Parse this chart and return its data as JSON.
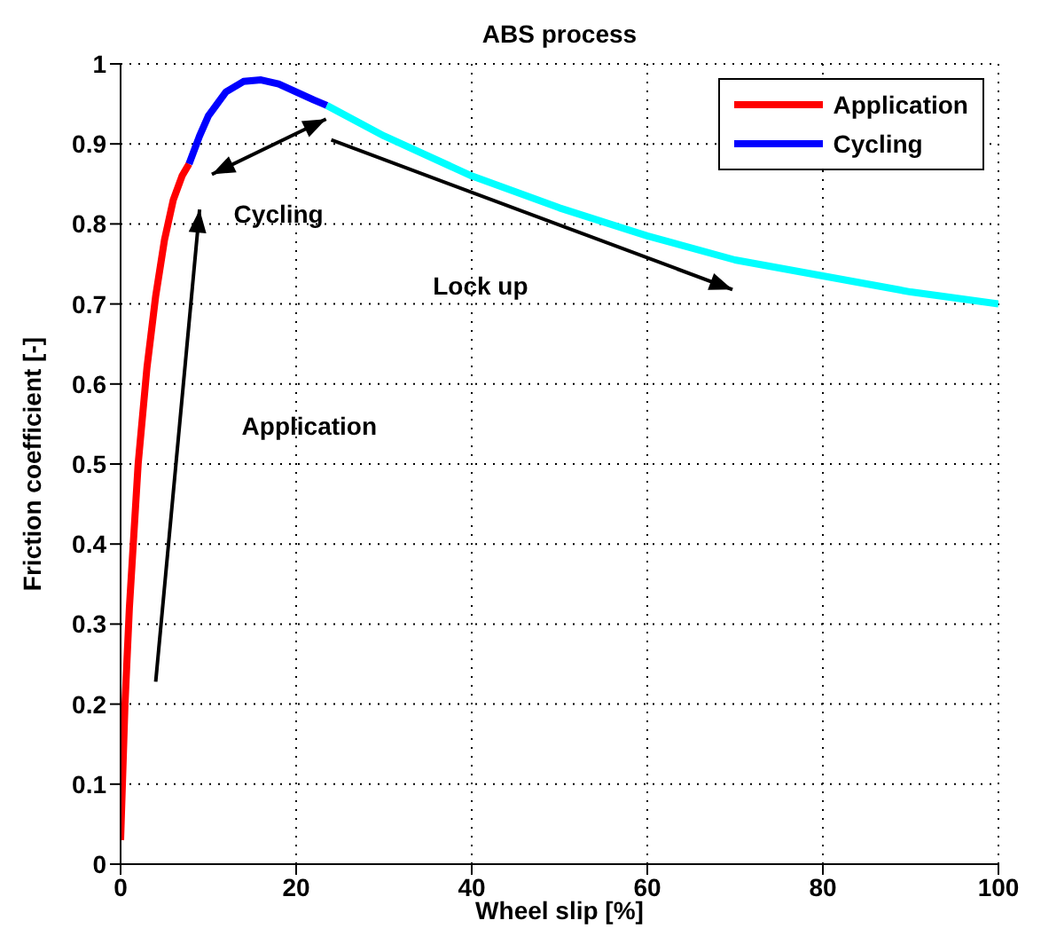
{
  "chart_data": {
    "type": "line",
    "title": "ABS process",
    "xlabel": "Wheel slip [%]",
    "ylabel": "Friction coefficient [-]",
    "xlim": [
      0,
      100
    ],
    "xticks": [
      0,
      20,
      40,
      60,
      80,
      100
    ],
    "ylim": [
      0,
      1
    ],
    "yticks": [
      0,
      0.1,
      0.2,
      0.3,
      0.4,
      0.5,
      0.6,
      0.7,
      0.8,
      0.9,
      1
    ],
    "grid": true,
    "legend": "top right",
    "line_style": "solid",
    "marker": "none",
    "series": [
      {
        "name": "Application",
        "color": "#ff0000",
        "x": [
          0,
          0.5,
          1,
          2,
          3,
          4,
          5,
          6,
          7,
          7.8
        ],
        "values": [
          0.03,
          0.2,
          0.32,
          0.5,
          0.62,
          0.71,
          0.78,
          0.83,
          0.86,
          0.875
        ]
      },
      {
        "name": "Cycling",
        "color": "#0000ff",
        "x": [
          7.8,
          9,
          10,
          12,
          14,
          16,
          18,
          20,
          22,
          23.5
        ],
        "values": [
          0.875,
          0.91,
          0.935,
          0.965,
          0.978,
          0.98,
          0.975,
          0.965,
          0.955,
          0.948
        ]
      },
      {
        "color": "#00ffff",
        "x": [
          23.5,
          30,
          40,
          50,
          60,
          70,
          80,
          90,
          100
        ],
        "values": [
          0.948,
          0.91,
          0.86,
          0.82,
          0.785,
          0.755,
          0.735,
          0.715,
          0.7
        ]
      }
    ],
    "annotations": [
      "Cycling",
      "Lock up",
      "Application"
    ]
  }
}
